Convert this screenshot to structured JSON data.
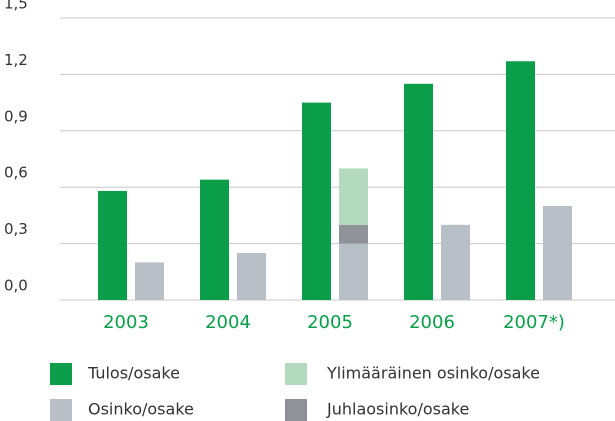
{
  "chart_data": {
    "type": "bar",
    "categories": [
      "2003",
      "2004",
      "2005",
      "2006",
      "2007*)"
    ],
    "series": [
      {
        "name": "Tulos/osake",
        "color": "#0a9e4a",
        "values": [
          0.58,
          0.64,
          1.05,
          1.15,
          1.27
        ]
      },
      {
        "name": "Osinko/osake",
        "color": "#b9bfc6",
        "values": [
          0.2,
          0.25,
          0.3,
          0.4,
          0.5
        ]
      },
      {
        "name": "Juhlaosinko/osake",
        "color": "#8f9399",
        "values": [
          null,
          null,
          0.1,
          null,
          null
        ]
      },
      {
        "name": "Ylimääräinen osinko/osake",
        "color": "#b3dabf",
        "values": [
          null,
          null,
          0.3,
          null,
          null
        ]
      }
    ],
    "ylim": [
      0,
      1.5
    ],
    "yticks": [
      {
        "value": 0,
        "label": "0,0"
      },
      {
        "value": 0.3,
        "label": "0,3"
      },
      {
        "value": 0.6,
        "label": "0,6"
      },
      {
        "value": 0.9,
        "label": "0,9"
      },
      {
        "value": 1.2,
        "label": "1,2"
      },
      {
        "value": 1.5,
        "label": "1,5"
      }
    ],
    "grid": true
  }
}
